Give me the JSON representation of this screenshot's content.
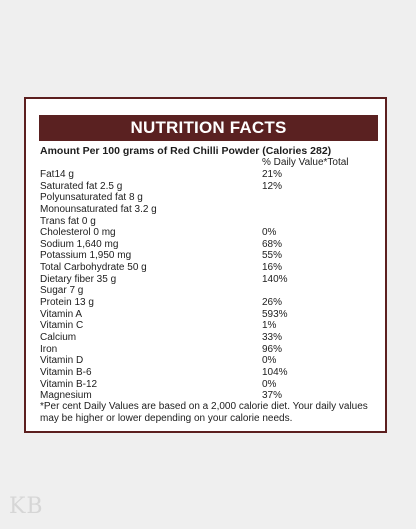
{
  "title": "NUTRITION FACTS",
  "subheading": "Amount Per 100 grams of Red Chilli Powder (Calories 282)",
  "daily_value_header": "% Daily Value*Total",
  "rows": [
    {
      "name": "Fat14 g",
      "dv": "21%"
    },
    {
      "name": "Saturated fat 2.5 g",
      "dv": "12%"
    },
    {
      "name": "Polyunsaturated fat 8 g",
      "dv": ""
    },
    {
      "name": "Monounsaturated fat 3.2 g",
      "dv": ""
    },
    {
      "name": "Trans fat 0 g",
      "dv": ""
    },
    {
      "name": "Cholesterol 0 mg",
      "dv": "0%"
    },
    {
      "name": "Sodium 1,640 mg",
      "dv": "68%"
    },
    {
      "name": "Potassium 1,950 mg",
      "dv": "55%"
    },
    {
      "name": "Total Carbohydrate 50 g",
      "dv": "16%"
    },
    {
      "name": "Dietary fiber 35 g",
      "dv": "140%"
    },
    {
      "name": "Sugar 7 g",
      "dv": ""
    },
    {
      "name": "Protein 13 g",
      "dv": "26%"
    },
    {
      "name": "Vitamin A",
      "dv": "593%"
    },
    {
      "name": "Vitamin C",
      "dv": "1%"
    },
    {
      "name": "Calcium",
      "dv": "33%"
    },
    {
      "name": "Iron",
      "dv": "96%"
    },
    {
      "name": "Vitamin D",
      "dv": "0%"
    },
    {
      "name": "Vitamin B-6",
      "dv": "104%"
    },
    {
      "name": "Vitamin B-12",
      "dv": "0%"
    },
    {
      "name": "Magnesium",
      "dv": "37%"
    }
  ],
  "footnote": "*Per cent Daily Values are based on a 2,000 calorie diet. Your daily values may be higher or lower depending on your calorie needs.",
  "logo_text": "KB",
  "colors": {
    "accent": "#5a2121",
    "background": "#efefef",
    "card": "#ffffff"
  }
}
